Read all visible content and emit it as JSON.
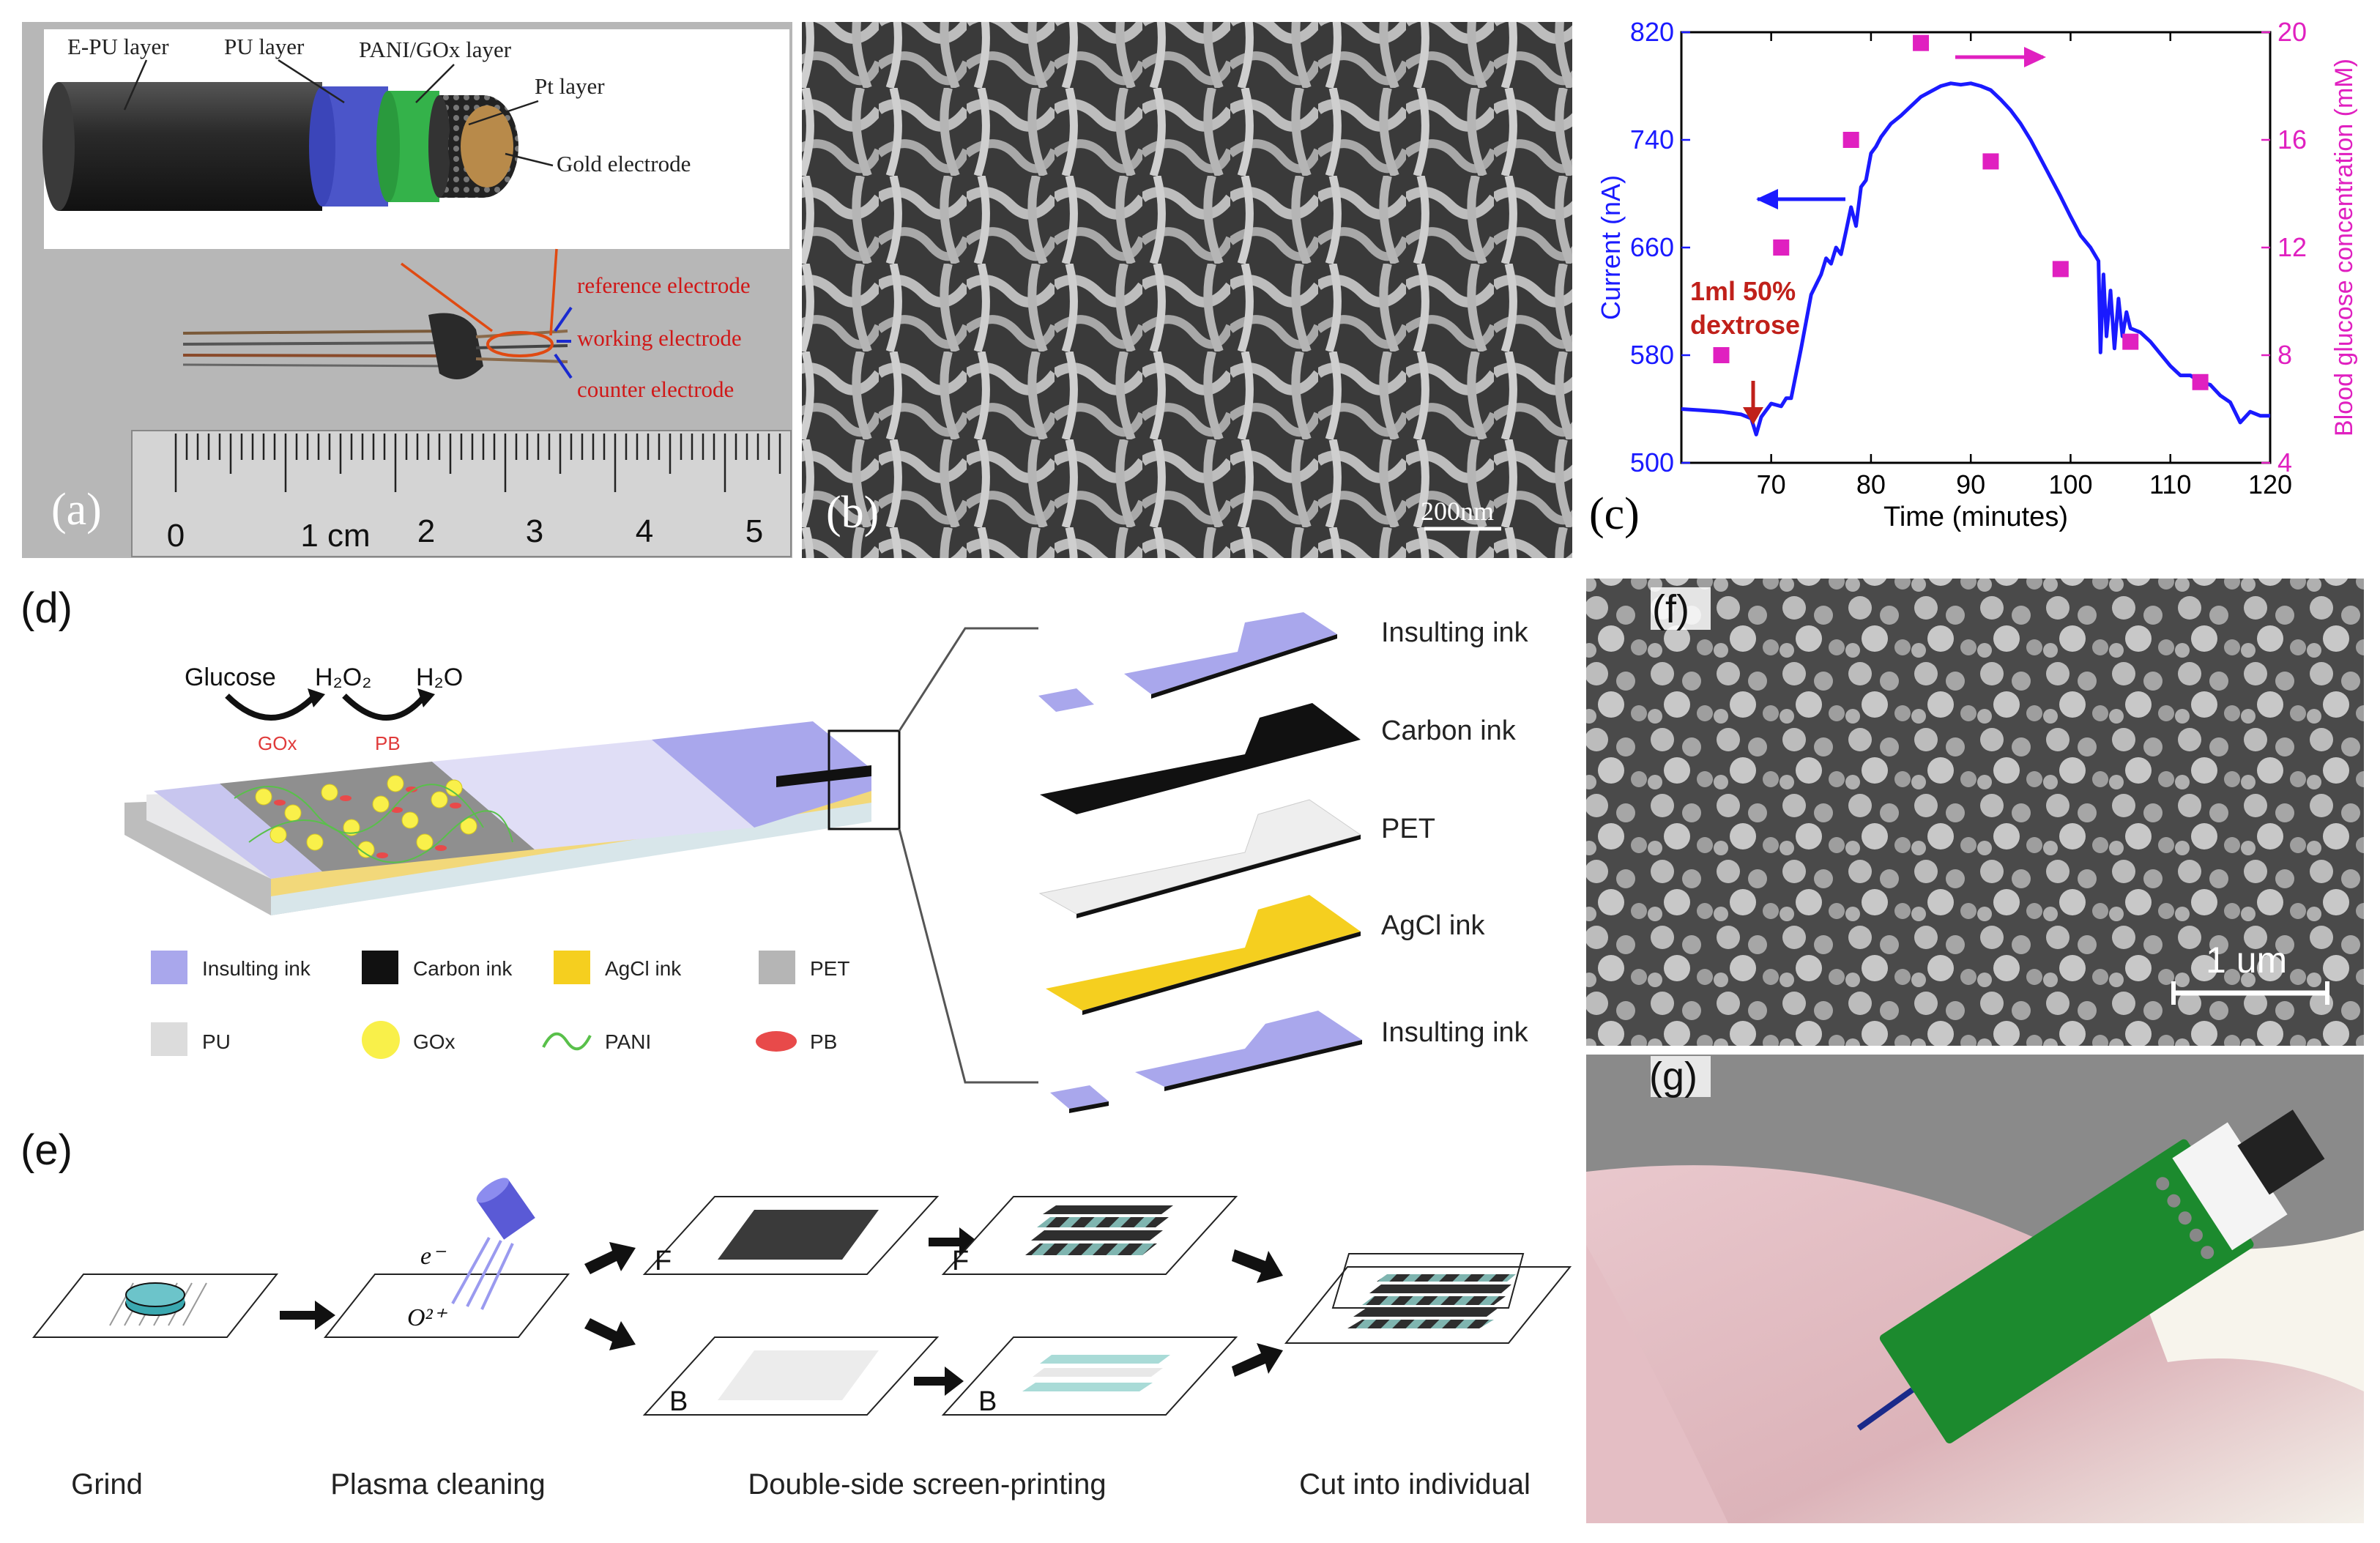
{
  "panel_a": {
    "label": "(a)",
    "layers": {
      "epu": "E-PU layer",
      "pu": "PU layer",
      "pani_gox": "PANI/GOx layer",
      "pt": "Pt layer",
      "gold": "Gold electrode"
    },
    "electrodes": {
      "reference": "reference electrode",
      "working": "working electrode",
      "counter": "counter  electrode"
    },
    "ruler": [
      "0",
      "1 cm",
      "2",
      "3",
      "4",
      "5"
    ]
  },
  "panel_b": {
    "label": "(b)",
    "scale_bar": "200nm"
  },
  "panel_c": {
    "label": "(c)",
    "annotation_line1": "1ml 50%",
    "annotation_line2": "dextrose"
  },
  "panel_d": {
    "label": "(d)",
    "reaction": {
      "glucose": "Glucose",
      "h2o2": "H₂O₂",
      "h2o": "H₂O",
      "gox": "GOx",
      "pb": "PB"
    },
    "exploded_layers": [
      "Insulting ink",
      "Carbon ink",
      "PET",
      "AgCl ink",
      "Insulting ink"
    ],
    "legend": [
      "Insulting ink",
      "Carbon ink",
      "AgCl ink",
      "PET",
      "PU",
      "GOx",
      "PANI",
      "PB"
    ]
  },
  "panel_e": {
    "label": "(e)",
    "steps": [
      "Grind",
      "Plasma cleaning",
      "Double-side screen-printing",
      "Cut into individual"
    ],
    "front": "F",
    "back": "B",
    "electron": "e⁻",
    "oxygen": "O²⁺"
  },
  "panel_f": {
    "label": "(f)",
    "scale_bar": "1 um"
  },
  "panel_g": {
    "label": "(g)"
  },
  "colors": {
    "current": "#1a1aff",
    "glucose": "#e020c0",
    "annotation": "#c0201a",
    "insulating": "#a9a7ec",
    "agcl": "#f5cf1f",
    "carbon": "#111111",
    "pcb_green": "#1c8a2e",
    "gox": "#f9f04a"
  },
  "chart_data": {
    "type": "line",
    "xlabel": "Time (minutes)",
    "ylabel": "Current (nA)",
    "y2label": "Blood glucose concentration (mM)",
    "xlim": [
      61,
      120
    ],
    "ylim": [
      500,
      820
    ],
    "y2lim": [
      4,
      20
    ],
    "xticks": [
      "70",
      "80",
      "90",
      "100",
      "110",
      "120"
    ],
    "yticks": [
      "500",
      "580",
      "660",
      "740",
      "820"
    ],
    "y2ticks": [
      "4",
      "8",
      "12",
      "16",
      "20"
    ],
    "series": [
      {
        "axis": "left",
        "style": "line",
        "x": [
          61,
          63,
          65,
          66,
          67,
          68,
          68.5,
          69,
          70,
          71,
          71.5,
          72,
          73,
          74,
          75,
          75.5,
          76,
          76.5,
          77,
          77.5,
          78,
          78.5,
          79,
          79.5,
          80,
          80.5,
          81,
          82,
          83,
          84,
          85,
          86,
          87,
          88,
          89,
          90,
          91,
          92,
          93,
          94,
          95,
          96,
          97,
          98,
          99,
          100,
          101,
          102,
          102.8,
          103,
          103.3,
          103.6,
          104,
          104.4,
          104.8,
          105.2,
          105.6,
          106,
          107,
          108,
          109,
          110,
          111,
          112,
          113,
          114,
          115,
          116,
          117,
          118,
          119,
          120
        ],
        "y": [
          540,
          539,
          538,
          537,
          536,
          533,
          521,
          534,
          544,
          542,
          548,
          548,
          585,
          625,
          640,
          652,
          648,
          660,
          655,
          672,
          690,
          676,
          705,
          710,
          730,
          735,
          742,
          752,
          758,
          765,
          772,
          776,
          780,
          782,
          781,
          782,
          780,
          777,
          770,
          762,
          752,
          740,
          726,
          712,
          698,
          683,
          669,
          660,
          650,
          582,
          640,
          594,
          628,
          585,
          622,
          594,
          612,
          600,
          597,
          590,
          581,
          572,
          565,
          565,
          560,
          558,
          550,
          545,
          530,
          538,
          535,
          535
        ]
      },
      {
        "axis": "right",
        "style": "scatter",
        "x": [
          65,
          71,
          78,
          85,
          92,
          99,
          106,
          113
        ],
        "y": [
          8,
          12,
          16,
          19.6,
          15.2,
          11.2,
          8.5,
          7
        ]
      }
    ]
  }
}
